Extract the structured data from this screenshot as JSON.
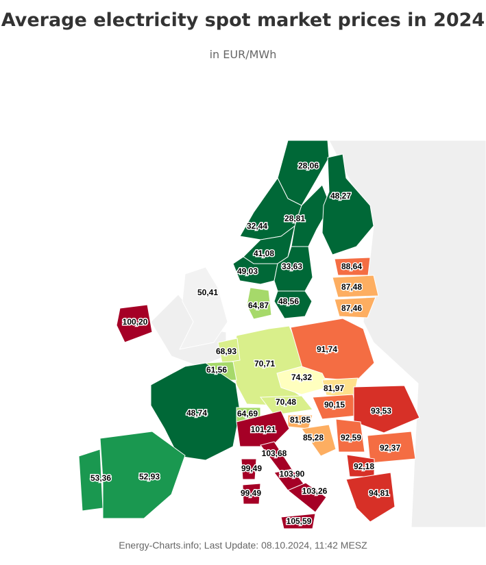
{
  "header": {
    "title": "Average electricity spot market prices in 2024",
    "subtitle": "in EUR/MWh"
  },
  "map": {
    "regions": [
      {
        "label": "28,06",
        "color": "#006837"
      },
      {
        "label": "48,27",
        "color": "#006837"
      },
      {
        "label": "32,44",
        "color": "#006837"
      },
      {
        "label": "28,81",
        "color": "#006837"
      },
      {
        "label": "41,08",
        "color": "#006837"
      },
      {
        "label": "33,63",
        "color": "#006837"
      },
      {
        "label": "49,03",
        "color": "#006837"
      },
      {
        "label": "48,56",
        "color": "#006837"
      },
      {
        "label": "88,64",
        "color": "#f46d43"
      },
      {
        "label": "87,48",
        "color": "#fdae61"
      },
      {
        "label": "87,46",
        "color": "#fdae61"
      },
      {
        "label": "50,41",
        "color": "#f2f2f2"
      },
      {
        "label": "64,87",
        "color": "#a6d96a"
      },
      {
        "label": "100,20",
        "color": "#a50026"
      },
      {
        "label": "68,93",
        "color": "#d9ef8b"
      },
      {
        "label": "70,71",
        "color": "#d9ef8b"
      },
      {
        "label": "91,74",
        "color": "#f46d43"
      },
      {
        "label": "61,56",
        "color": "#a6d96a"
      },
      {
        "label": "74,32",
        "color": "#ffffbf"
      },
      {
        "label": "81,97",
        "color": "#fee08b"
      },
      {
        "label": "48,74",
        "color": "#006837"
      },
      {
        "label": "70,48",
        "color": "#d9ef8b"
      },
      {
        "label": "90,15",
        "color": "#f46d43"
      },
      {
        "label": "93,53",
        "color": "#d73027"
      },
      {
        "label": "64,69",
        "color": "#a6d96a"
      },
      {
        "label": "81,85",
        "color": "#fdae61"
      },
      {
        "label": "101,21",
        "color": "#a50026"
      },
      {
        "label": "85,28",
        "color": "#fdae61"
      },
      {
        "label": "92,59",
        "color": "#f46d43"
      },
      {
        "label": "92,37",
        "color": "#f46d43"
      },
      {
        "label": "103,68",
        "color": "#a50026"
      },
      {
        "label": "53,36",
        "color": "#1a9850"
      },
      {
        "label": "52,93",
        "color": "#1a9850"
      },
      {
        "label": "99,49",
        "color": "#a50026"
      },
      {
        "label": "103,90",
        "color": "#a50026"
      },
      {
        "label": "92,18",
        "color": "#d73027"
      },
      {
        "label": "99,49",
        "color": "#a50026"
      },
      {
        "label": "103,26",
        "color": "#a50026"
      },
      {
        "label": "94,81",
        "color": "#d73027"
      },
      {
        "label": "105,59",
        "color": "#a50026"
      }
    ]
  },
  "footer": "Energy-Charts.info; Last Update: 08.10.2024, 11:42 MESZ"
}
